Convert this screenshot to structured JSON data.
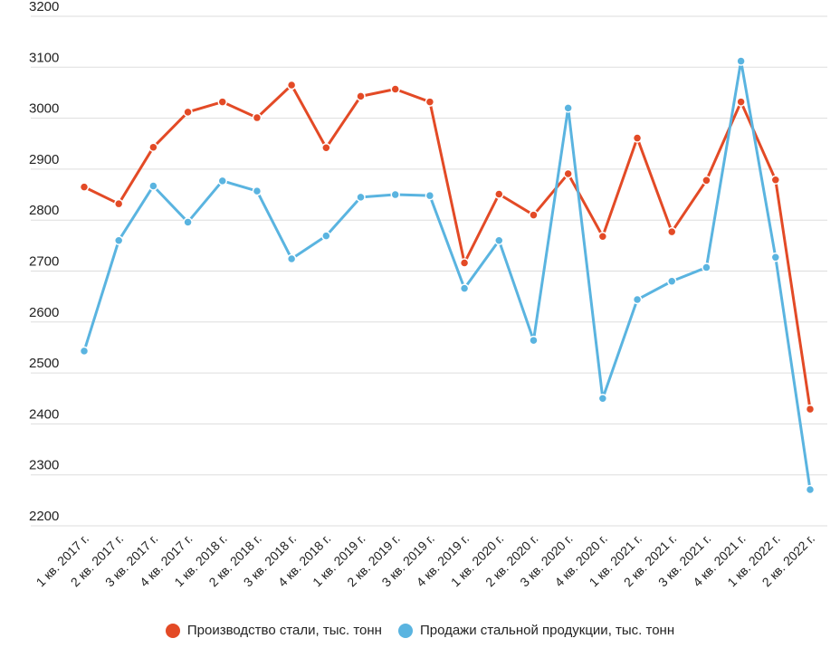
{
  "chart_data": {
    "type": "line",
    "categories": [
      "1 кв. 2017 г.",
      "2 кв. 2017 г.",
      "3 кв. 2017 г.",
      "4 кв. 2017 г.",
      "1 кв. 2018 г.",
      "2 кв. 2018 г.",
      "3 кв. 2018 г.",
      "4 кв. 2018 г.",
      "1 кв. 2019 г.",
      "2 кв. 2019 г.",
      "3 кв. 2019 г.",
      "4 кв. 2019 г.",
      "1 кв. 2020 г.",
      "2 кв. 2020 г.",
      "3 кв. 2020 г.",
      "4 кв. 2020 г.",
      "1 кв. 2021 г.",
      "2 кв. 2021 г.",
      "3 кв. 2021 г.",
      "4 кв. 2021 г.",
      "1 кв. 2022 г.",
      "2 кв. 2022 г."
    ],
    "series": [
      {
        "name": "Производство стали, тыс. тонн",
        "color": "#e34a26",
        "values": [
          2865,
          2832,
          2943,
          3012,
          3032,
          3001,
          3065,
          2942,
          3043,
          3057,
          3032,
          2716,
          2851,
          2810,
          2891,
          2768,
          2961,
          2777,
          2878,
          3032,
          2879,
          2429
        ]
      },
      {
        "name": "Продажи стальной продукции, тыс. тонн",
        "color": "#5ab4e0",
        "values": [
          2543,
          2760,
          2867,
          2796,
          2877,
          2857,
          2724,
          2769,
          2845,
          2850,
          2848,
          2666,
          2760,
          2564,
          3020,
          2450,
          2644,
          2680,
          2707,
          3112,
          2727,
          2271
        ]
      }
    ],
    "ylim": [
      2200,
      3200
    ],
    "yticks": [
      2200,
      2300,
      2400,
      2500,
      2600,
      2700,
      2800,
      2900,
      3000,
      3100,
      3200
    ],
    "grid": true,
    "legend_position": "bottom"
  }
}
